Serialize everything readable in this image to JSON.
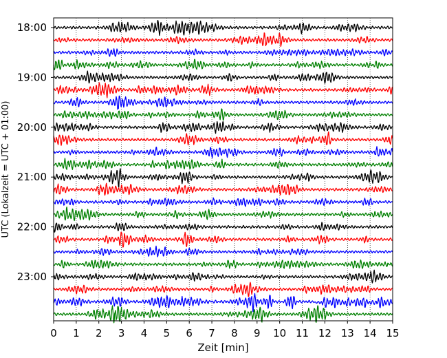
{
  "chart_data": {
    "type": "line",
    "subtype": "helicorder-seismogram",
    "xlabel": "Zeit  [min]",
    "ylabel": "UTC (Lokalzeit = UTC + 01:00)",
    "xlim": [
      0,
      15
    ],
    "x_ticks": [
      "0",
      "1",
      "2",
      "3",
      "4",
      "5",
      "6",
      "7",
      "8",
      "9",
      "10",
      "11",
      "12",
      "13",
      "14",
      "15"
    ],
    "y_tick_labels": [
      "18:00",
      "19:00",
      "20:00",
      "21:00",
      "22:00",
      "23:00"
    ],
    "grid": "vertical dotted lines at each minute",
    "minutes_per_trace": 15,
    "trace_start": "18:00",
    "trace_count": 24,
    "trace_color_cycle": [
      "#000000",
      "#ff0000",
      "#0000ff",
      "#008000"
    ],
    "series": [
      {
        "start_time": "18:00",
        "color": "black"
      },
      {
        "start_time": "18:15",
        "color": "red"
      },
      {
        "start_time": "18:30",
        "color": "blue"
      },
      {
        "start_time": "18:45",
        "color": "green"
      },
      {
        "start_time": "19:00",
        "color": "black"
      },
      {
        "start_time": "19:15",
        "color": "red"
      },
      {
        "start_time": "19:30",
        "color": "blue"
      },
      {
        "start_time": "19:45",
        "color": "green"
      },
      {
        "start_time": "20:00",
        "color": "black"
      },
      {
        "start_time": "20:15",
        "color": "red"
      },
      {
        "start_time": "20:30",
        "color": "blue"
      },
      {
        "start_time": "20:45",
        "color": "green"
      },
      {
        "start_time": "21:00",
        "color": "black"
      },
      {
        "start_time": "21:15",
        "color": "red"
      },
      {
        "start_time": "21:30",
        "color": "blue"
      },
      {
        "start_time": "21:45",
        "color": "green"
      },
      {
        "start_time": "22:00",
        "color": "black"
      },
      {
        "start_time": "22:15",
        "color": "red"
      },
      {
        "start_time": "22:30",
        "color": "blue"
      },
      {
        "start_time": "22:45",
        "color": "green"
      },
      {
        "start_time": "23:00",
        "color": "black"
      },
      {
        "start_time": "23:15",
        "color": "red",
        "event_minutes": [
          8.6
        ]
      },
      {
        "start_time": "23:30",
        "color": "blue",
        "event_minutes": [
          8.8,
          9.5,
          10.5,
          12.0,
          12.5,
          13.0,
          13.7,
          14.5,
          15.0
        ]
      },
      {
        "start_time": "23:45",
        "color": "green",
        "event_minutes": [
          2.7,
          3.0
        ]
      }
    ]
  }
}
